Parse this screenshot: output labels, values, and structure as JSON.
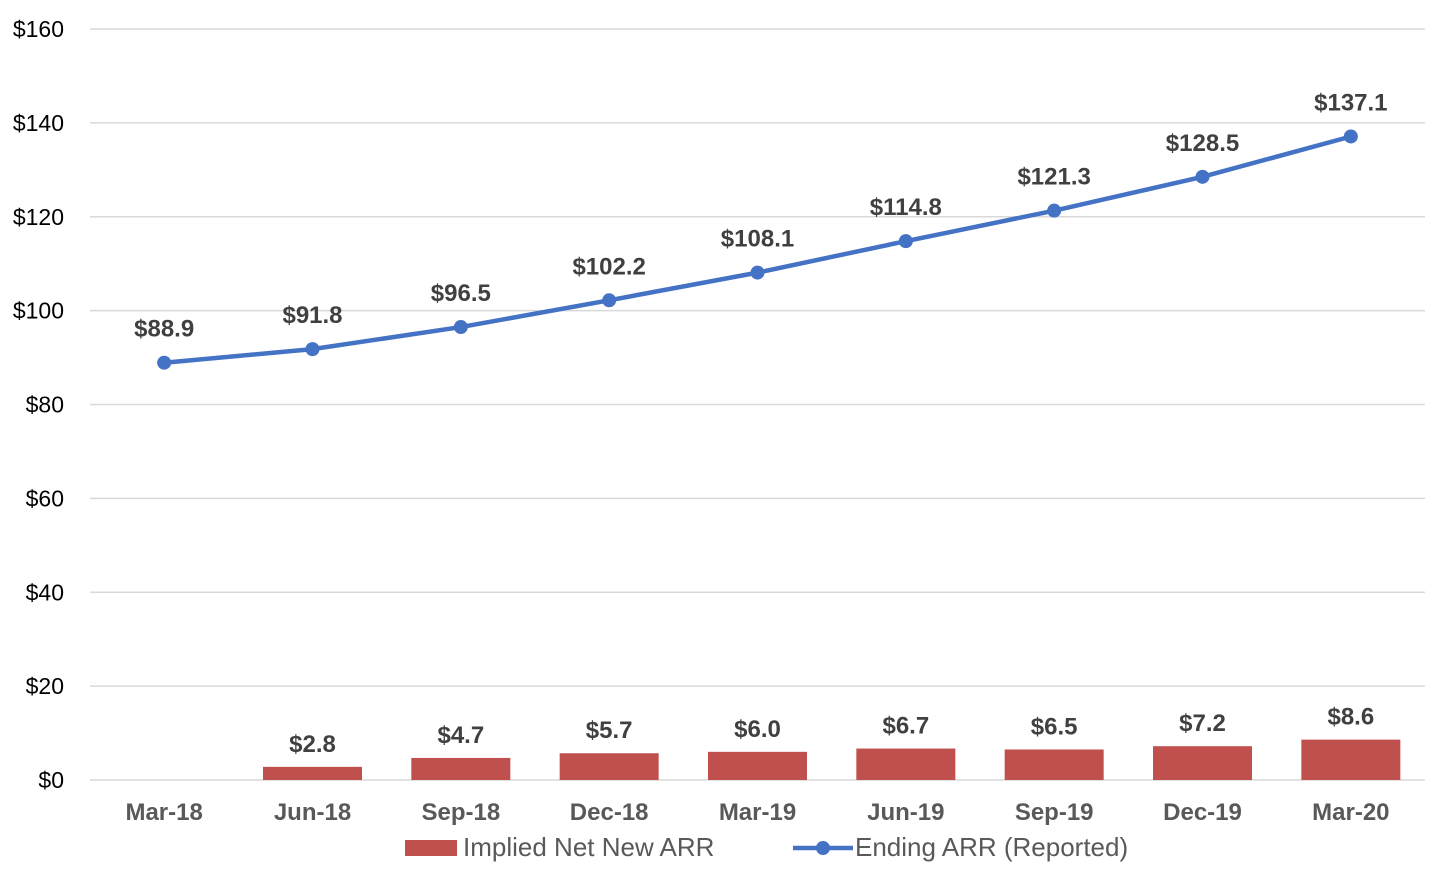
{
  "chart_data": {
    "type": "bar+line",
    "categories": [
      "Mar-18",
      "Jun-18",
      "Sep-18",
      "Dec-18",
      "Mar-19",
      "Jun-19",
      "Sep-19",
      "Dec-19",
      "Mar-20"
    ],
    "series": [
      {
        "name": "Implied Net New ARR",
        "type": "bar",
        "color": "#C0504D",
        "values": [
          null,
          2.8,
          4.7,
          5.7,
          6.0,
          6.7,
          6.5,
          7.2,
          8.6
        ],
        "labels": [
          "",
          "$2.8",
          "$4.7",
          "$5.7",
          "$6.0",
          "$6.7",
          "$6.5",
          "$7.2",
          "$8.6"
        ]
      },
      {
        "name": "Ending ARR (Reported)",
        "type": "line",
        "color": "#4472C4",
        "values": [
          88.9,
          91.8,
          96.5,
          102.2,
          108.1,
          114.8,
          121.3,
          128.5,
          137.1
        ],
        "labels": [
          "$88.9",
          "$91.8",
          "$96.5",
          "$102.2",
          "$108.1",
          "$114.8",
          "$121.3",
          "$128.5",
          "$137.1"
        ]
      }
    ],
    "ylim": [
      0,
      160
    ],
    "yticks": [
      0,
      20,
      40,
      60,
      80,
      100,
      120,
      140,
      160
    ],
    "ytick_labels": [
      "$0",
      "$20",
      "$40",
      "$60",
      "$80",
      "$100",
      "$120",
      "$140",
      "$160"
    ],
    "grid": true,
    "legend": "bottom",
    "title": "",
    "xlabel": "",
    "ylabel": ""
  }
}
